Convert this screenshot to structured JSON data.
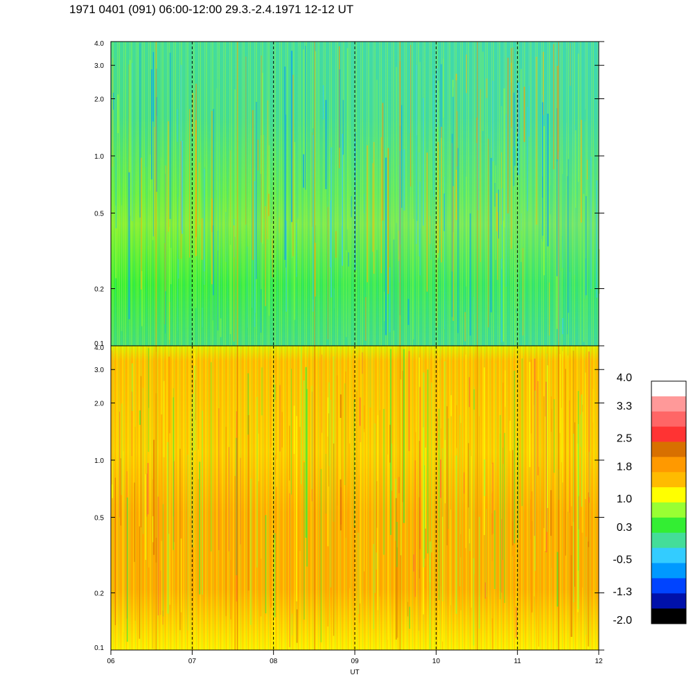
{
  "title": "1971 0401 (091) 06:00-12:00 29.3.-2.4.1971  12-12 UT",
  "chart_data": [
    {
      "type": "heatmap",
      "panel": "top",
      "x_ticks": [
        "06",
        "07",
        "08",
        "09",
        "10",
        "11",
        "12"
      ],
      "x_range": [
        6,
        12
      ],
      "y_scale": "log",
      "y_range": [
        0.1,
        4.0
      ],
      "y_ticks": [
        {
          "value": 4.0,
          "label": "4.0"
        },
        {
          "value": 3.0,
          "label": "3.0"
        },
        {
          "value": 2.0,
          "label": "2.0"
        },
        {
          "value": 1.0,
          "label": "1.0"
        },
        {
          "value": 0.5,
          "label": "0.5"
        },
        {
          "value": 0.2,
          "label": "0.2"
        },
        {
          "value": 0.1,
          "label": "0.1"
        }
      ],
      "dashed_gridlines_x": [
        7,
        8,
        9,
        10,
        11
      ],
      "dominant_level": 0.3
    },
    {
      "type": "heatmap",
      "panel": "bottom",
      "x_ticks": [
        "06",
        "07",
        "08",
        "09",
        "10",
        "11",
        "12"
      ],
      "x_range": [
        6,
        12
      ],
      "xlabel": "UT",
      "y_scale": "log",
      "y_range": [
        0.1,
        4.0
      ],
      "y_ticks": [
        {
          "value": 4.0,
          "label": "4.0"
        },
        {
          "value": 3.0,
          "label": "3.0"
        },
        {
          "value": 2.0,
          "label": "2.0"
        },
        {
          "value": 1.0,
          "label": "1.0"
        },
        {
          "value": 0.5,
          "label": "0.5"
        },
        {
          "value": 0.2,
          "label": "0.2"
        },
        {
          "value": 0.1,
          "label": "0.1"
        }
      ],
      "dashed_gridlines_x": [
        7,
        8,
        9,
        10,
        11
      ],
      "dominant_level": 1.5
    }
  ],
  "colorbar": {
    "labels": [
      "4.0",
      "3.3",
      "2.5",
      "1.8",
      "1.0",
      "0.3",
      "-0.5",
      "-1.3",
      "-2.0"
    ],
    "range": [
      -2.0,
      4.0
    ],
    "colors": [
      "#ffffff",
      "#ff9999",
      "#ff6666",
      "#ff3333",
      "#d87000",
      "#ff9900",
      "#ffbb00",
      "#ffff00",
      "#99ff33",
      "#33ee33",
      "#44dd99",
      "#33ccff",
      "#0099ff",
      "#0044ff",
      "#0011aa",
      "#000000"
    ]
  }
}
